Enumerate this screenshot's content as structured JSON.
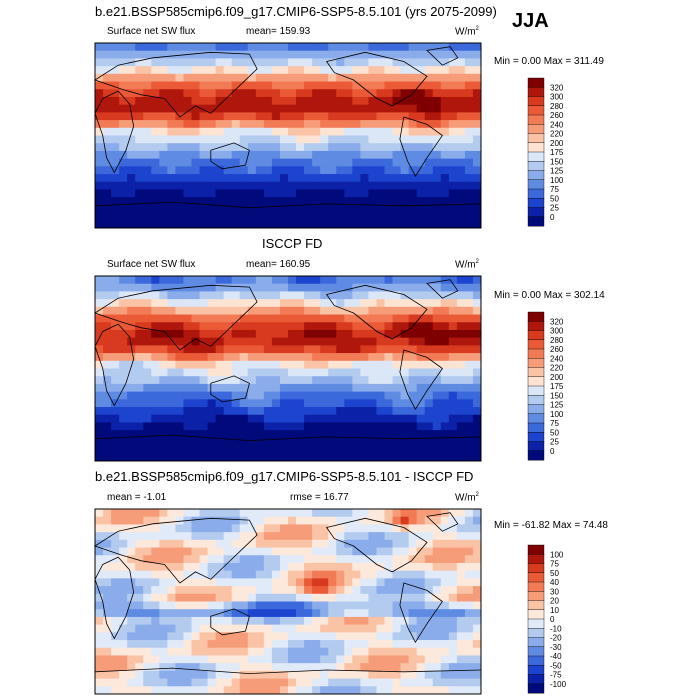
{
  "season": "JJA",
  "chart_data": [
    {
      "type": "heatmap",
      "title": "b.e21.BSSP585cmip6.f09_g17.CMIP6-SSP5-8.5.101 (yrs 2075-2099)",
      "left_label": "Surface net SW flux",
      "center_label": "mean= 159.93",
      "units": "W/m",
      "units_sup": "2",
      "min_label": "Min =   0.00 Max = 311.49",
      "min": 0.0,
      "max": 311.49,
      "levels": [
        "320",
        "300",
        "280",
        "260",
        "240",
        "220",
        "200",
        "175",
        "150",
        "125",
        "100",
        "75",
        "50",
        "25",
        "0"
      ],
      "colors": [
        "#7f0000",
        "#b0170c",
        "#d73a1e",
        "#ea5a36",
        "#f27a55",
        "#f79c78",
        "#fbc3a6",
        "#fde3d2",
        "#dbe6f7",
        "#b4cbf0",
        "#8aacea",
        "#5f8be3",
        "#3b69dc",
        "#1d44cf",
        "#0a21a8",
        "#000a7a"
      ]
    },
    {
      "type": "heatmap",
      "title": "ISCCP FD",
      "left_label": "Surface net SW flux",
      "center_label": "mean= 160.95",
      "units": "W/m",
      "units_sup": "2",
      "min_label": "Min =   0.00 Max = 302.14",
      "min": 0.0,
      "max": 302.14,
      "levels": [
        "320",
        "300",
        "280",
        "260",
        "240",
        "220",
        "200",
        "175",
        "150",
        "125",
        "100",
        "75",
        "50",
        "25",
        "0"
      ],
      "colors": [
        "#7f0000",
        "#b0170c",
        "#d73a1e",
        "#ea5a36",
        "#f27a55",
        "#f79c78",
        "#fbc3a6",
        "#fde3d2",
        "#dbe6f7",
        "#b4cbf0",
        "#8aacea",
        "#5f8be3",
        "#3b69dc",
        "#1d44cf",
        "#0a21a8",
        "#000a7a"
      ]
    },
    {
      "type": "heatmap",
      "title": "b.e21.BSSP585cmip6.f09_g17.CMIP6-SSP5-8.5.101 - ISCCP FD",
      "left_label": "mean =  -1.01",
      "center_label": "rmse =  16.77",
      "units": "W/m",
      "units_sup": "2",
      "min_label": "Min = -61.82 Max =  74.48",
      "min": -61.82,
      "max": 74.48,
      "levels": [
        "100",
        "75",
        "50",
        "40",
        "30",
        "20",
        "10",
        "0",
        "-10",
        "-20",
        "-30",
        "-40",
        "-50",
        "-75",
        "-100"
      ],
      "colors": [
        "#7f0000",
        "#b0170c",
        "#d73a1e",
        "#ea5a36",
        "#f27a55",
        "#f79c78",
        "#fbc3a6",
        "#fde8dc",
        "#e0eaf8",
        "#b4cbf0",
        "#8aacea",
        "#5f8be3",
        "#3b69dc",
        "#1d44cf",
        "#0a21a8",
        "#000a7a"
      ]
    }
  ]
}
